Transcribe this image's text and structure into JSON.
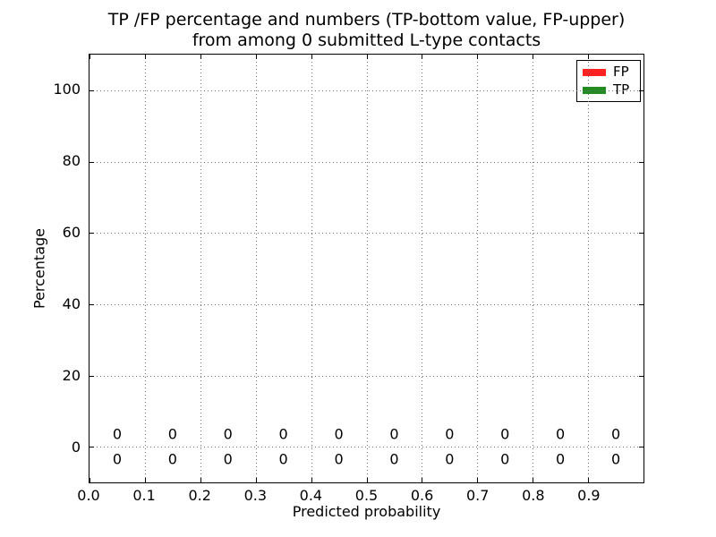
{
  "chart_data": {
    "type": "bar",
    "title": "TP /FP percentage and numbers (TP-bottom value, FP-upper)\nfrom among 0 submitted L-type contacts",
    "xlabel": "Predicted probability",
    "ylabel": "Percentage",
    "xlim": [
      0.0,
      1.0
    ],
    "ylim": [
      -10,
      110
    ],
    "grid": "dotted",
    "legend_position": "upper right",
    "x_tick_values": [
      0.0,
      0.1,
      0.2,
      0.3,
      0.4,
      0.5,
      0.6,
      0.7,
      0.8,
      0.9
    ],
    "x_tick_labels": [
      "0.0",
      "0.1",
      "0.2",
      "0.3",
      "0.4",
      "0.5",
      "0.6",
      "0.7",
      "0.8",
      "0.9"
    ],
    "y_tick_values": [
      0,
      20,
      40,
      60,
      80,
      100
    ],
    "y_tick_labels": [
      "0",
      "20",
      "40",
      "60",
      "80",
      "100"
    ],
    "categories": [
      0.05,
      0.15,
      0.25,
      0.35,
      0.45,
      0.55,
      0.65,
      0.75,
      0.85,
      0.95
    ],
    "series": [
      {
        "name": "TP",
        "color": "#228B22",
        "values": [
          0,
          0,
          0,
          0,
          0,
          0,
          0,
          0,
          0,
          0
        ],
        "labels": [
          "0",
          "0",
          "0",
          "0",
          "0",
          "0",
          "0",
          "0",
          "0",
          "0"
        ],
        "label_row_y": -3.5
      },
      {
        "name": "FP",
        "color": "#FF2222",
        "values": [
          0,
          0,
          0,
          0,
          0,
          0,
          0,
          0,
          0,
          0
        ],
        "labels": [
          "0",
          "0",
          "0",
          "0",
          "0",
          "0",
          "0",
          "0",
          "0",
          "0"
        ],
        "label_row_y": 3.5
      }
    ]
  }
}
